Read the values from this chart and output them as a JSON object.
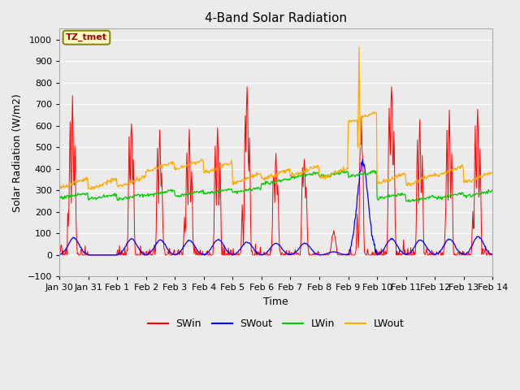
{
  "title": "4-Band Solar Radiation",
  "xlabel": "Time",
  "ylabel": "Solar Radiation (W/m2)",
  "ylim": [
    -100,
    1050
  ],
  "yticks": [
    -100,
    0,
    100,
    200,
    300,
    400,
    500,
    600,
    700,
    800,
    900,
    1000
  ],
  "plot_bg_color": "#ebebeb",
  "grid_color": "#ffffff",
  "colors": {
    "SWin": "#ff0000",
    "SWout": "#0000ff",
    "LWin": "#00cc00",
    "LWout": "#ffaa00"
  },
  "annotation_text": "TZ_tmet",
  "annotation_color": "#aa0000",
  "annotation_bg": "#ffffcc",
  "annotation_border": "#888800"
}
